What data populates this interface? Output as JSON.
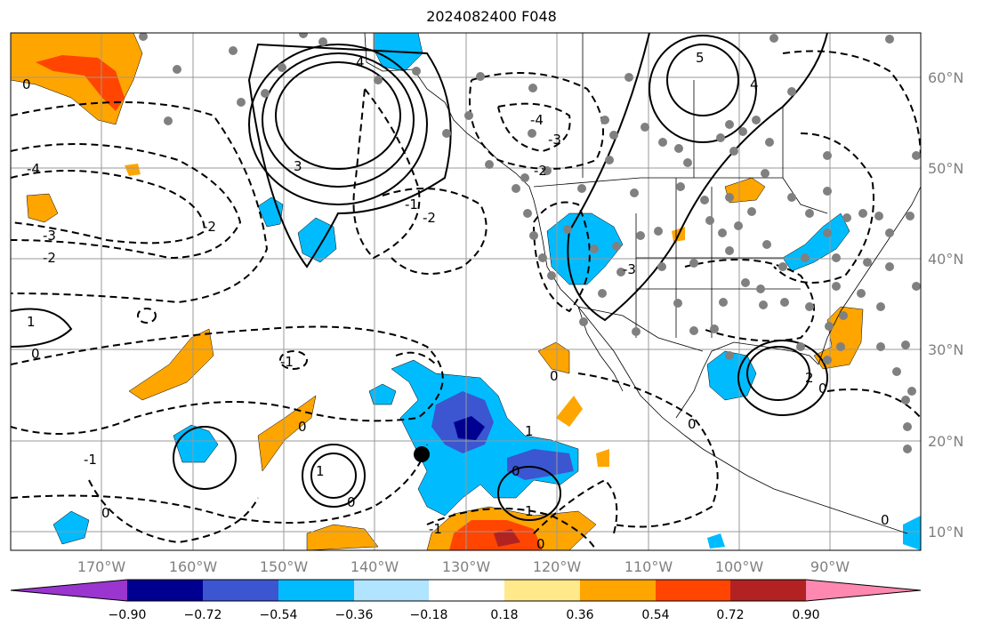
{
  "title": "2024082400 F048",
  "lat_labels": [
    "60°N",
    "50°N",
    "40°N",
    "30°N",
    "20°N",
    "10°N"
  ],
  "lon_labels": [
    "170°W",
    "160°W",
    "150°W",
    "140°W",
    "130°W",
    "120°W",
    "110°W",
    "100°W",
    "90°W"
  ],
  "colorbar": {
    "tick_labels": [
      "−0.90",
      "−0.72",
      "−0.54",
      "−0.36",
      "−0.18",
      "0.18",
      "0.36",
      "0.54",
      "0.72",
      "0.90"
    ],
    "colors": [
      "#9a35d0",
      "#000090",
      "#3b56d0",
      "#00bcff",
      "#b0e4ff",
      "#ffffff",
      "#ffe98a",
      "#ffa500",
      "#ff4500",
      "#b22222",
      "#ff88b0"
    ]
  },
  "contour_labels": [
    "5",
    "4",
    "3",
    "2",
    "1",
    "0",
    "-1",
    "-2",
    "-3",
    "-4"
  ],
  "colors": {
    "grid": "#999999",
    "dots": "#808080",
    "storm_marker": "#000000"
  }
}
